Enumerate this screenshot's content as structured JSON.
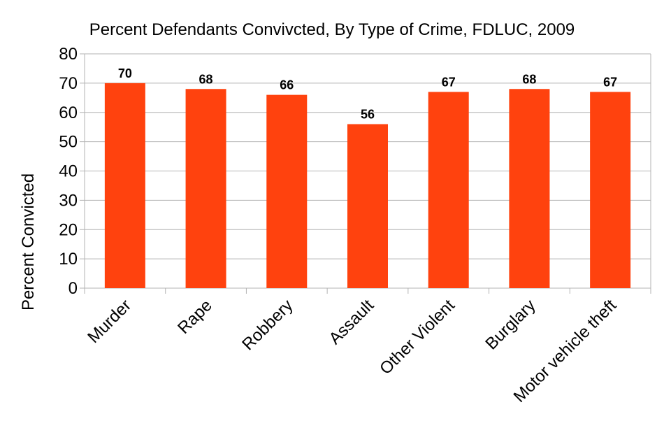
{
  "chart_data": {
    "type": "bar",
    "title": "Percent Defendants Convivcted, By Type of Crime, FDLUC, 2009",
    "xlabel": "",
    "ylabel": "Percent Convicted",
    "categories": [
      "Murder",
      "Rape",
      "Robbery",
      "Assault",
      "Other Violent",
      "Burglary",
      "Motor vehicle theft"
    ],
    "values": [
      70,
      68,
      66,
      56,
      67,
      68,
      67
    ],
    "ylim": [
      0,
      80
    ],
    "yticks": [
      0,
      10,
      20,
      30,
      40,
      50,
      60,
      70,
      80
    ],
    "grid": true,
    "legend": "none",
    "data_labels": true,
    "colors": {
      "bar": "#ff420e",
      "grid": "#b3b3b3",
      "axis": "#b3b3b3",
      "text": "#000000"
    }
  }
}
